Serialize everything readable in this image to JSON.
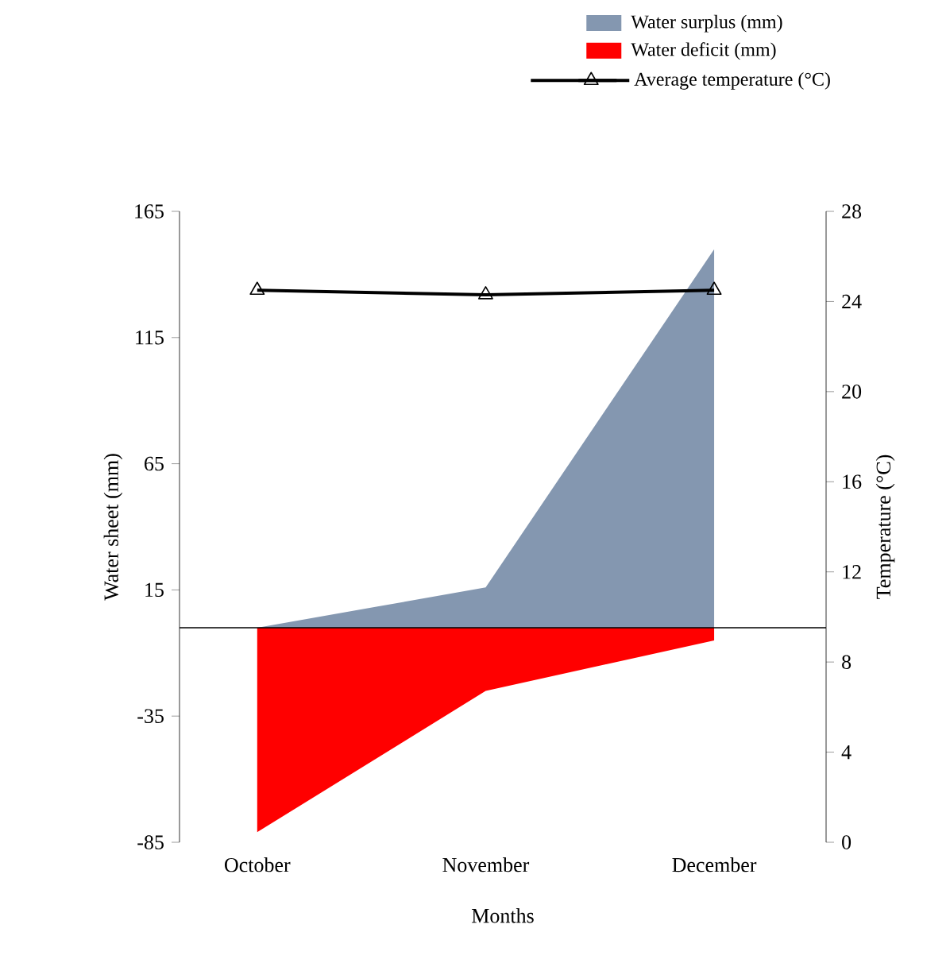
{
  "chart_data": {
    "type": "area",
    "xlabel": "Months",
    "ylabel": "Water sheet (mm)",
    "y2label": "Temperature (°C)",
    "categories": [
      "October",
      "November",
      "December"
    ],
    "series": [
      {
        "name": "Water surplus (mm)",
        "color": "#8497b0",
        "values": [
          0,
          16,
          150
        ]
      },
      {
        "name": "Water deficit (mm)",
        "color": "#ff0000",
        "values": [
          -81,
          -25,
          -5
        ]
      },
      {
        "name": "Average temperature (°C)",
        "type": "line",
        "axis": "y2",
        "color": "#000000",
        "marker": "triangle",
        "values": [
          24.5,
          24.3,
          24.5
        ]
      }
    ],
    "ylim": [
      -85,
      165
    ],
    "yticks": [
      -85,
      -35,
      15,
      65,
      115,
      165
    ],
    "y2lim": [
      0,
      28
    ],
    "y2ticks": [
      0,
      4,
      8,
      12,
      16,
      20,
      24,
      28
    ],
    "legend": "top right"
  }
}
